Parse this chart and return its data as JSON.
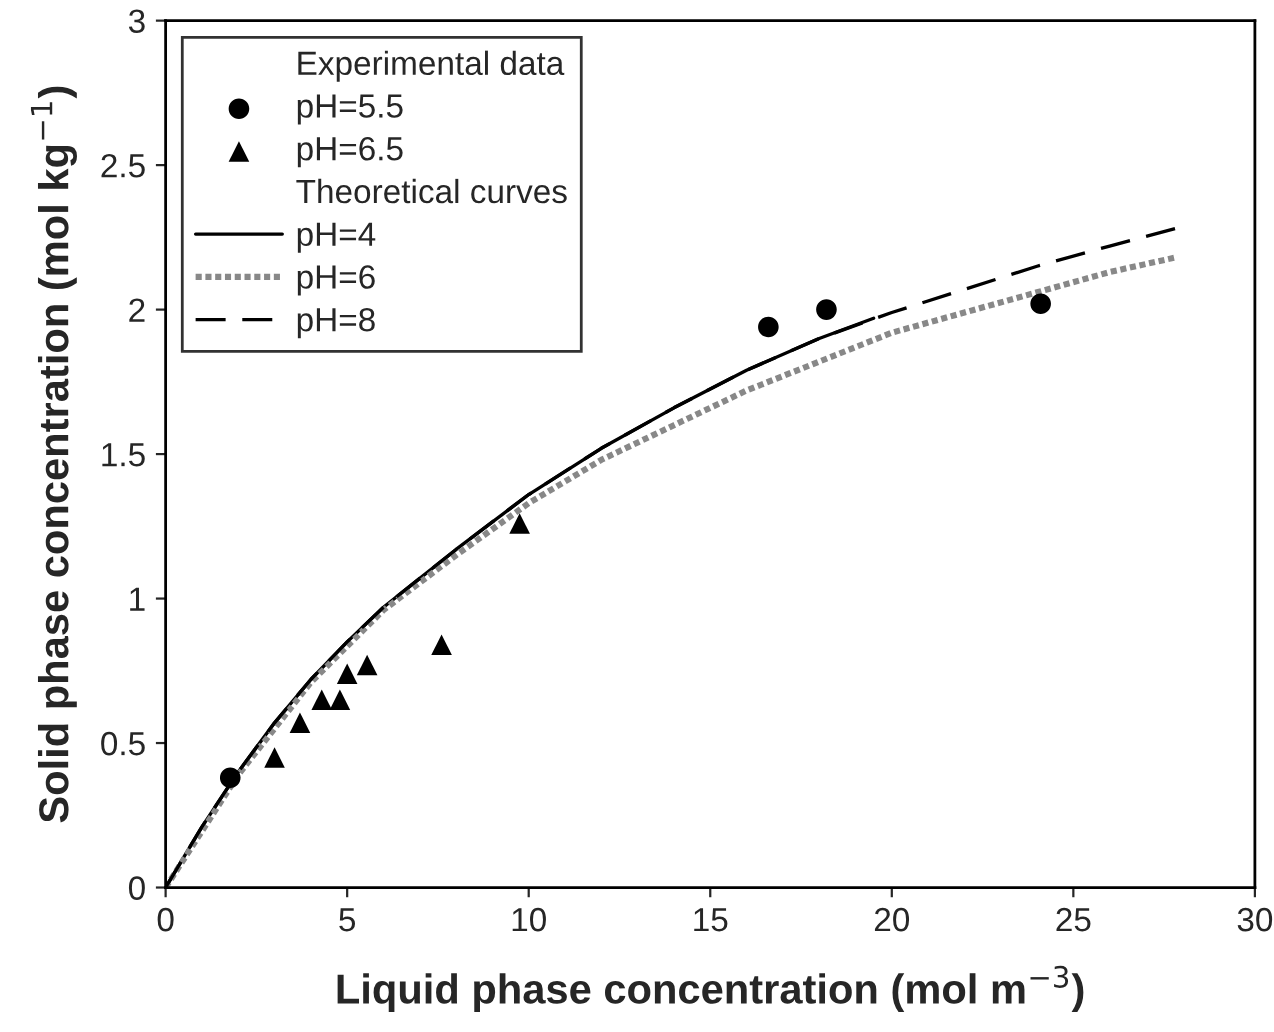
{
  "chart_data": {
    "type": "line",
    "xlabel": "Liquid phase concentration (mol m$^{−3}$)",
    "ylabel": "Solid phase concentration (mol kg$^{−1}$)",
    "annotations": [
      "Experimental data",
      "Theoretical curves"
    ],
    "xlim": [
      0,
      30
    ],
    "ylim": [
      0,
      3
    ],
    "xticks": [
      0,
      5,
      10,
      15,
      20,
      25,
      30
    ],
    "yticks": [
      0,
      0.5,
      1,
      1.5,
      2,
      2.5,
      3
    ],
    "grid": false,
    "legend": "top left",
    "series": [
      {
        "name": "pH=5.5",
        "type": "scatter",
        "marker": "circle",
        "color": "#000000",
        "x": [
          1.78,
          16.6,
          18.2,
          24.1
        ],
        "values": [
          0.38,
          1.94,
          2.0,
          2.02
        ]
      },
      {
        "name": "pH=6.5",
        "type": "scatter",
        "marker": "triangle",
        "color": "#000000",
        "x": [
          3.0,
          3.7,
          4.3,
          4.8,
          5.0,
          5.55,
          7.6,
          9.75
        ],
        "values": [
          0.45,
          0.57,
          0.65,
          0.65,
          0.74,
          0.77,
          0.84,
          1.26
        ]
      },
      {
        "name": "pH=4",
        "line_style": "solid",
        "color": "#000000",
        "x": [
          0,
          1,
          2,
          3,
          4,
          5,
          6,
          7,
          8,
          10,
          12,
          14,
          16,
          18,
          19.5
        ],
        "values": [
          0,
          0.21,
          0.4,
          0.57,
          0.72,
          0.85,
          0.97,
          1.07,
          1.17,
          1.36,
          1.52,
          1.66,
          1.79,
          1.9,
          1.97
        ]
      },
      {
        "name": "pH=6",
        "line_style": "dotted",
        "color": "#888888",
        "x": [
          0,
          2,
          4,
          6,
          8,
          10,
          12,
          14,
          16,
          18,
          20,
          22,
          24,
          26,
          27.8
        ],
        "values": [
          0,
          0.39,
          0.71,
          0.96,
          1.15,
          1.33,
          1.48,
          1.6,
          1.72,
          1.82,
          1.92,
          1.99,
          2.06,
          2.13,
          2.18
        ]
      },
      {
        "name": "pH=8",
        "line_style": "dashed",
        "color": "#000000",
        "x": [
          0,
          1,
          2,
          3,
          4,
          5,
          6,
          7,
          8,
          10,
          12,
          14,
          16,
          18,
          20,
          22,
          24,
          26,
          27.8
        ],
        "values": [
          0,
          0.21,
          0.4,
          0.57,
          0.72,
          0.85,
          0.97,
          1.07,
          1.17,
          1.36,
          1.52,
          1.66,
          1.79,
          1.9,
          1.99,
          2.07,
          2.15,
          2.22,
          2.28
        ]
      }
    ]
  }
}
